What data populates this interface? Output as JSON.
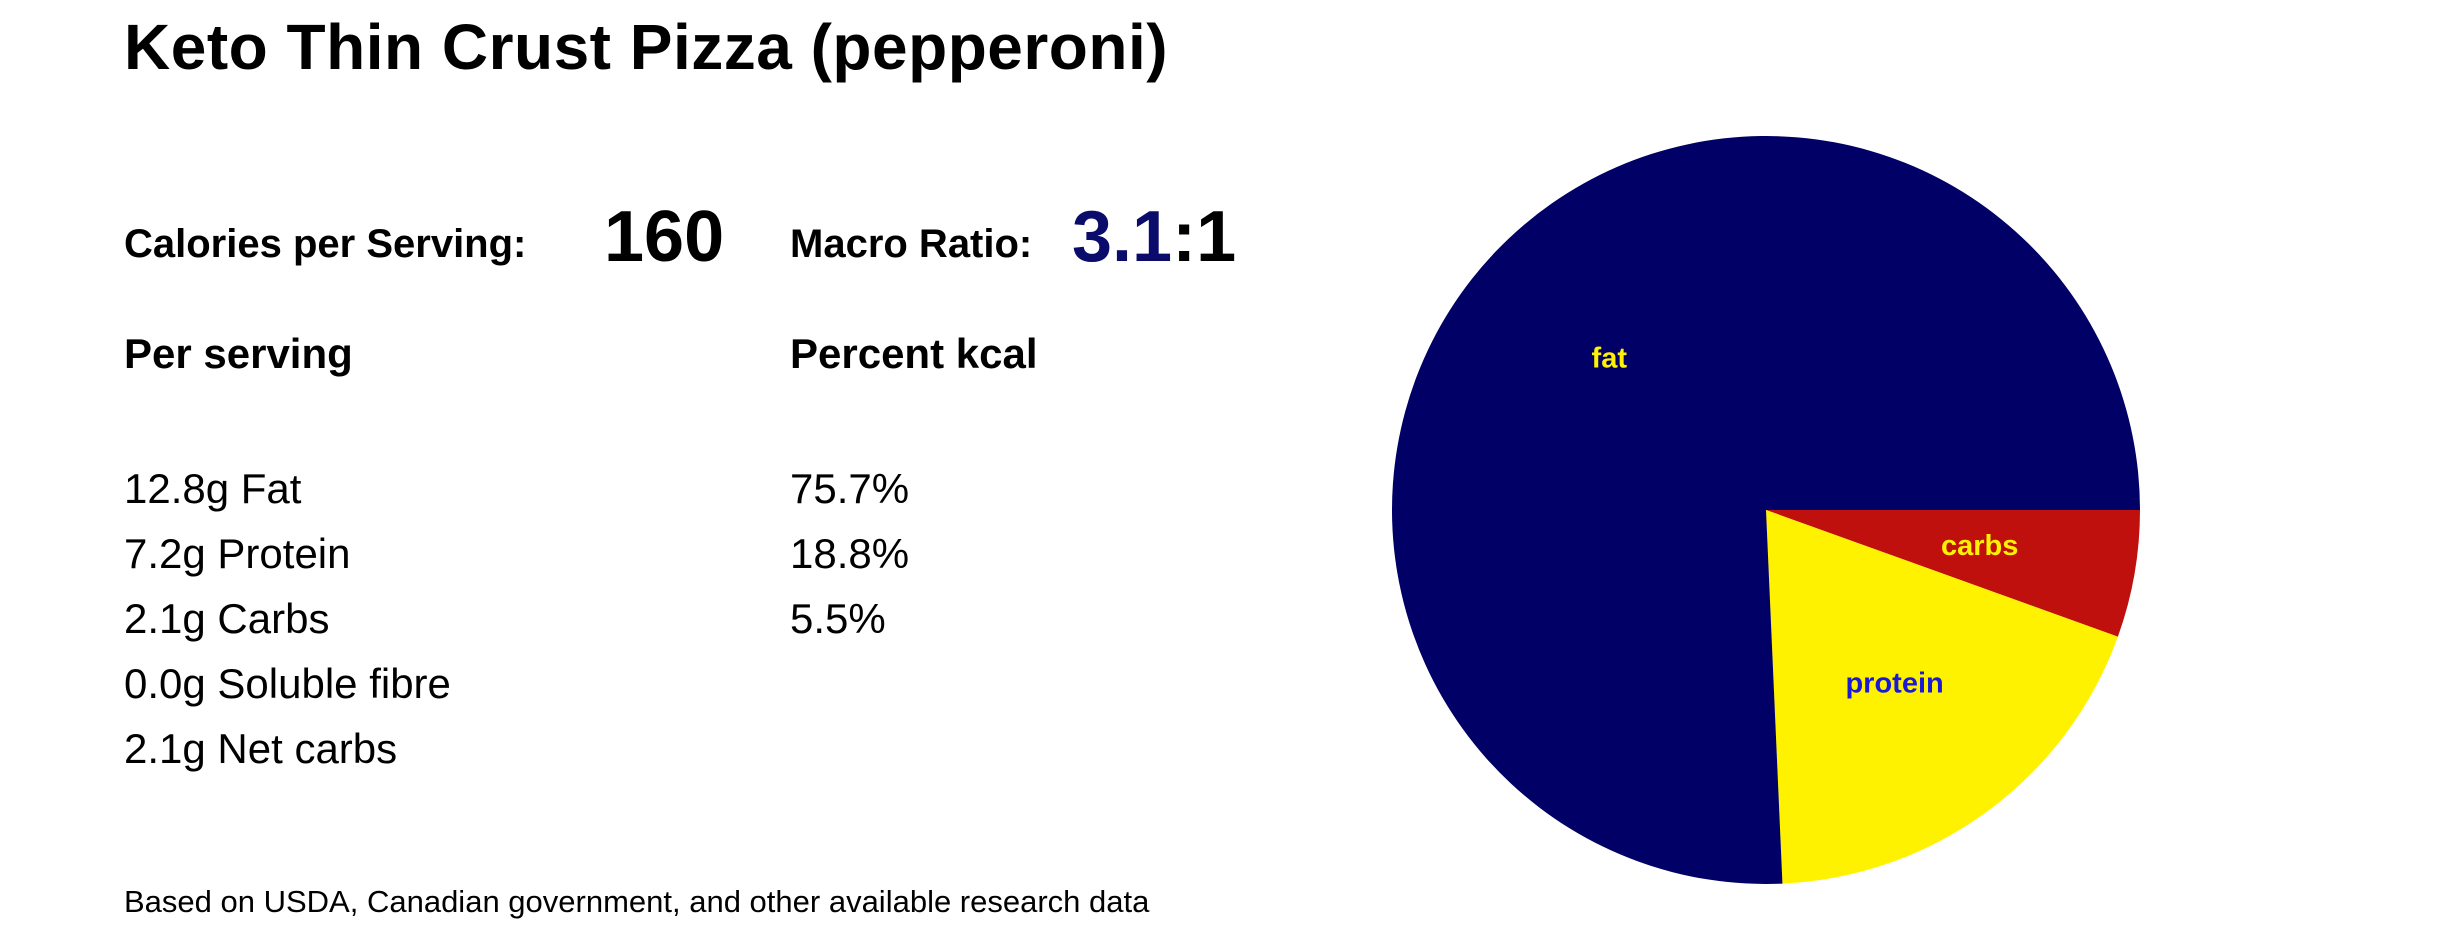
{
  "title": "Keto Thin Crust Pizza (pepperoni)",
  "calories": {
    "label": "Calories per Serving:",
    "value": "160"
  },
  "macro_ratio": {
    "label": "Macro Ratio:",
    "value": "3.1",
    "suffix": ":1"
  },
  "per_serving": {
    "heading": "Per serving",
    "items": [
      "12.8g Fat",
      "7.2g Protein",
      "2.1g Carbs",
      "0.0g Soluble fibre",
      "2.1g Net carbs"
    ]
  },
  "percent_kcal": {
    "heading": "Percent kcal",
    "items": [
      "75.7%",
      "18.8%",
      "5.5%"
    ]
  },
  "footnote": "Based on USDA, Canadian government, and other available research data",
  "chart_data": {
    "type": "pie",
    "slices": [
      {
        "label": "carbs",
        "value": 5.5,
        "color": "#c0100e",
        "label_color": "#fff200"
      },
      {
        "label": "protein",
        "value": 18.8,
        "color": "#fff200",
        "label_color": "#1a1ad6"
      },
      {
        "label": "fat",
        "value": 75.7,
        "color": "#000066",
        "label_color": "#fff200"
      }
    ],
    "start": "3 o'clock",
    "direction": "clockwise"
  }
}
